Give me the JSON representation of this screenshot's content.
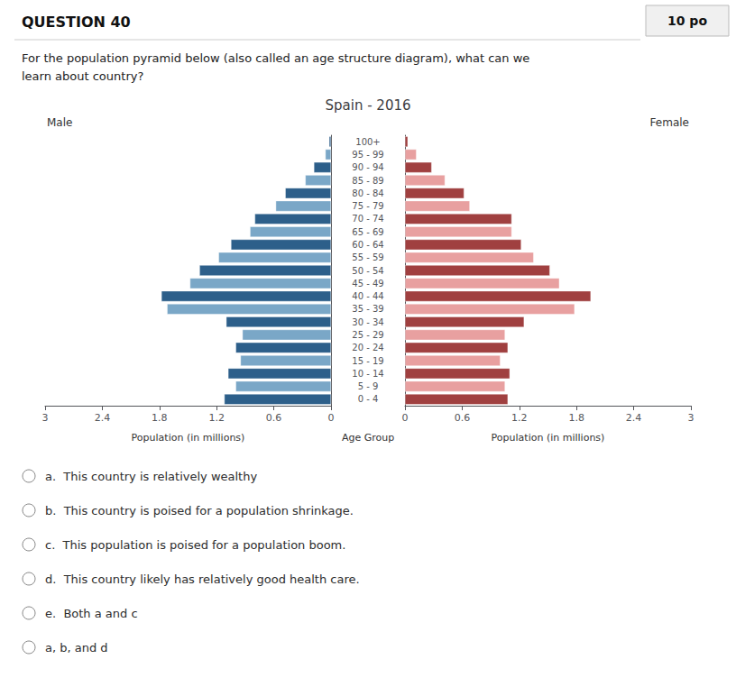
{
  "chart_data": {
    "type": "bar",
    "orientation": "horizontal",
    "title": "Spain - 2016",
    "ylabel": "Age Group",
    "categories": [
      "0 - 4",
      "5 - 9",
      "10 - 14",
      "15 - 19",
      "20 - 24",
      "25 - 29",
      "30 - 34",
      "35 - 39",
      "40 - 44",
      "45 - 49",
      "50 - 54",
      "55 - 59",
      "60 - 64",
      "65 - 69",
      "70 - 74",
      "75 - 79",
      "80 - 84",
      "85 - 89",
      "90 - 94",
      "95 - 99",
      "100+"
    ],
    "series": [
      {
        "name": "Male",
        "xlabel": "Population (in millions)",
        "colors": [
          "#2d5f8a",
          "#7aa7c7",
          "#2d5f8a",
          "#7aa7c7",
          "#2d5f8a",
          "#7aa7c7",
          "#2d5f8a",
          "#7aa7c7",
          "#2d5f8a",
          "#7aa7c7",
          "#2d5f8a",
          "#7aa7c7",
          "#2d5f8a",
          "#7aa7c7",
          "#2d5f8a",
          "#7aa7c7",
          "#2d5f8a",
          "#7aa7c7",
          "#2d5f8a",
          "#7aa7c7",
          "#2d5f8a"
        ],
        "values": [
          1.12,
          1.0,
          1.08,
          0.95,
          1.0,
          0.93,
          1.1,
          1.72,
          1.78,
          1.48,
          1.38,
          1.18,
          1.05,
          0.85,
          0.8,
          0.58,
          0.48,
          0.27,
          0.18,
          0.06,
          0.02
        ]
      },
      {
        "name": "Female",
        "xlabel": "Population (in millions)",
        "colors": [
          "#a04040",
          "#e8a0a0",
          "#a04040",
          "#e8a0a0",
          "#a04040",
          "#e8a0a0",
          "#a04040",
          "#e8a0a0",
          "#a04040",
          "#e8a0a0",
          "#a04040",
          "#e8a0a0",
          "#a04040",
          "#e8a0a0",
          "#a04040",
          "#e8a0a0",
          "#a04040",
          "#e8a0a0",
          "#a04040",
          "#e8a0a0",
          "#a04040"
        ],
        "values": [
          1.08,
          1.05,
          1.1,
          1.0,
          1.08,
          1.05,
          1.25,
          1.78,
          1.95,
          1.62,
          1.52,
          1.35,
          1.22,
          1.12,
          1.12,
          0.68,
          0.62,
          0.42,
          0.28,
          0.12,
          0.03
        ]
      }
    ],
    "xlim": [
      0,
      3.0
    ],
    "xticks": [
      0,
      0.6,
      1.2,
      1.8,
      2.4,
      3
    ],
    "grid": false,
    "annotations": {
      "question": "QUESTION 40",
      "points": "10 po",
      "body": "For the population pyramid below (also called an age structure diagram), what can we\nlearn about country?",
      "options": [
        "a.  This country is relatively wealthy",
        "b.  This country is poised for a population shrinkage.",
        "c.  This population is poised for a population boom.",
        "d.  This country likely has relatively good health care.",
        "e.  Both a and c",
        "a, b, and d"
      ]
    }
  }
}
